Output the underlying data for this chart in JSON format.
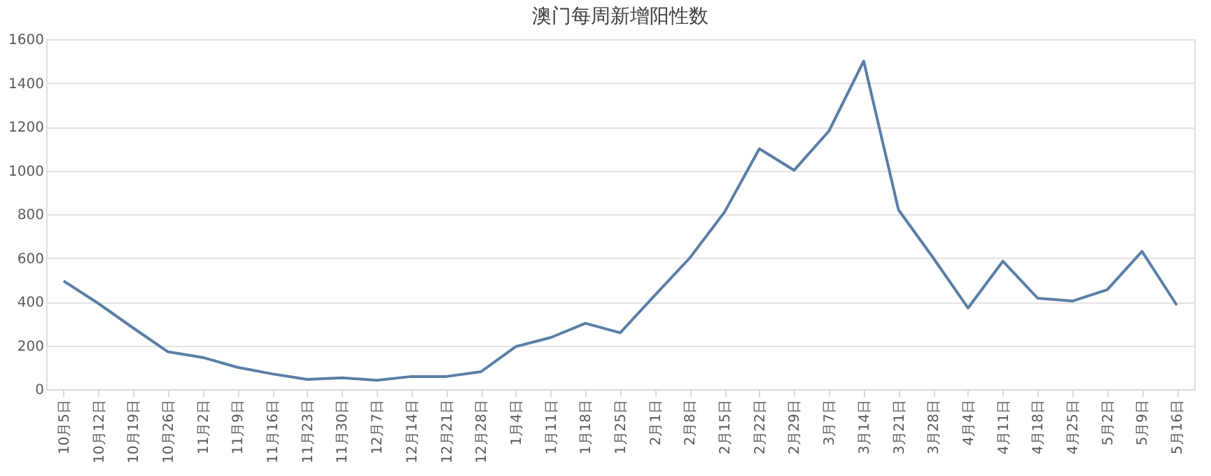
{
  "chart_data": {
    "type": "line",
    "title": "澳门每周新增阳性数",
    "categories": [
      "10月5日",
      "10月12日",
      "10月19日",
      "10月26日",
      "11月2日",
      "11月9日",
      "11月16日",
      "11月23日",
      "11月30日",
      "12月7日",
      "12月14日",
      "12月21日",
      "12月28日",
      "1月4日",
      "1月11日",
      "1月18日",
      "1月25日",
      "2月1日",
      "2月8日",
      "2月15日",
      "2月22日",
      "2月29日",
      "3月7日",
      "3月14日",
      "3月21日",
      "3月28日",
      "4月4日",
      "4月11日",
      "4月18日",
      "4月25日",
      "5月2日",
      "5月9日",
      "5月16日"
    ],
    "series": [
      {
        "color": "#5a7fa6",
        "values": [
          495,
          392,
          280,
          171,
          145,
          100,
          70,
          45,
          52,
          41,
          58,
          58,
          80,
          195,
          236,
          301,
          258,
          430,
          600,
          810,
          1099,
          1001,
          1180,
          1500,
          820,
          600,
          371,
          585,
          416,
          403,
          455,
          630,
          384
        ]
      }
    ],
    "ylim": [
      0,
      1600
    ],
    "yticks": [
      0,
      200,
      400,
      600,
      800,
      1000,
      1200,
      1400,
      1600
    ],
    "grid": "y",
    "marker": "none",
    "line_style": "solid"
  }
}
